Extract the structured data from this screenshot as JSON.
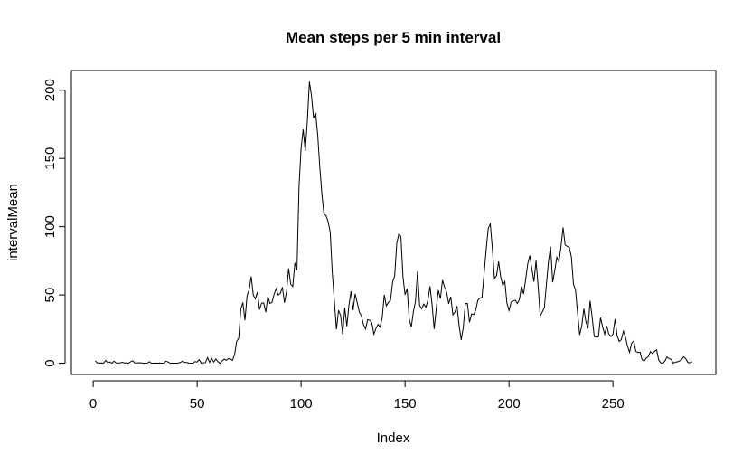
{
  "chart_data": {
    "type": "line",
    "title": "Mean steps per 5 min interval",
    "x_label": "Index",
    "y_label": "intervalMean",
    "color": "#000000",
    "xlim": [
      -10.48,
      299.48
    ],
    "xticks": [
      0,
      50,
      100,
      150,
      200,
      250
    ],
    "ylim": [
      -8.25,
      214.4
    ],
    "yticks": [
      0,
      50,
      100,
      150,
      200
    ],
    "values": [
      1.7,
      0.3,
      0.1,
      0.2,
      0.1,
      2.1,
      0.5,
      0.9,
      0,
      1.5,
      0.3,
      0.1,
      0.3,
      0.7,
      0.2,
      0.3,
      0,
      1.1,
      1.8,
      0.2,
      0.2,
      0.4,
      0.3,
      0,
      0,
      0,
      1.1,
      0,
      0,
      0.1,
      0,
      0.2,
      0,
      0,
      1.5,
      0.9,
      0,
      0,
      0,
      0,
      0.2,
      0.6,
      1.6,
      0.6,
      0.5,
      0.1,
      0,
      0,
      1.2,
      0.9,
      2.6,
      0,
      0.3,
      0.4,
      4.1,
      0.7,
      3.5,
      0.8,
      3.1,
      1.1,
      0,
      1.6,
      3,
      2.2,
      3.3,
      3,
      2.1,
      6.1,
      16,
      18.3,
      39.5,
      44.5,
      31.5,
      49.3,
      53.8,
      63.5,
      50,
      47.1,
      52.2,
      39.3,
      44,
      44.2,
      37.4,
      49,
      43.8,
      44.4,
      50.5,
      54.5,
      49.9,
      51,
      55.7,
      44.3,
      52.3,
      69.5,
      57.8,
      56.2,
      73.4,
      68.2,
      129.4,
      157.5,
      171.2,
      155.4,
      177.3,
      206.2,
      195.9,
      179.6,
      183.4,
      167,
      143.5,
      124,
      109.1,
      108.1,
      103.7,
      96,
      66.2,
      45.2,
      24.8,
      38.8,
      35,
      21.1,
      40.6,
      27,
      42.4,
      52.7,
      38.9,
      50.8,
      44.3,
      37.4,
      34.7,
      28.3,
      25.1,
      31.9,
      31.4,
      29.7,
      21.3,
      25.5,
      28.4,
      26.5,
      33.4,
      50,
      42,
      44.6,
      46,
      59.2,
      63.9,
      87.7,
      94.8,
      92.8,
      63.4,
      50.2,
      54.5,
      32.4,
      26.5,
      37.7,
      45.1,
      67.3,
      42.3,
      39.9,
      43.3,
      41,
      46.2,
      56.4,
      42.8,
      25.1,
      40,
      53.5,
      47.3,
      60.8,
      55.8,
      52,
      43.6,
      48.7,
      35.5,
      37.5,
      41.8,
      27.5,
      17.1,
      26.1,
      43.6,
      43.8,
      30,
      36.1,
      35.5,
      38.8,
      46,
      47.8,
      48.1,
      65.3,
      82.9,
      98.7,
      102.1,
      84,
      62.1,
      64.1,
      74.5,
      63.2,
      56.9,
      59.8,
      43.9,
      38.6,
      44.7,
      45.5,
      46.2,
      43.7,
      46.6,
      56.3,
      50.7,
      61.2,
      72.7,
      78.9,
      68.9,
      59.7,
      75.1,
      56.5,
      34.8,
      37.5,
      40.7,
      58,
      74.7,
      85.3,
      59.3,
      67.8,
      77.7,
      74.2,
      85.3,
      99.5,
      86.6,
      85.6,
      84.9,
      77.8,
      58,
      53.4,
      36.3,
      20.7,
      27.4,
      40,
      30.2,
      25.5,
      45.7,
      33.5,
      19.6,
      19,
      19.3,
      33.3,
      26.8,
      21.2,
      27.3,
      21.3,
      19.5,
      21.3,
      32.3,
      20.2,
      15.9,
      17.2,
      23.5,
      19.2,
      12.5,
      8,
      14.7,
      16.3,
      8.7,
      7.8,
      8.1,
      2.6,
      1.5,
      3.7,
      4.8,
      8.5,
      7.1,
      8.7,
      9.8,
      2.2,
      0.3,
      0.1,
      1.6,
      4.6,
      3.3,
      2.8,
      0,
      0.8,
      1,
      1.6,
      2.6,
      4.7,
      3.3,
      0.6,
      0.2,
      1.1
    ]
  }
}
